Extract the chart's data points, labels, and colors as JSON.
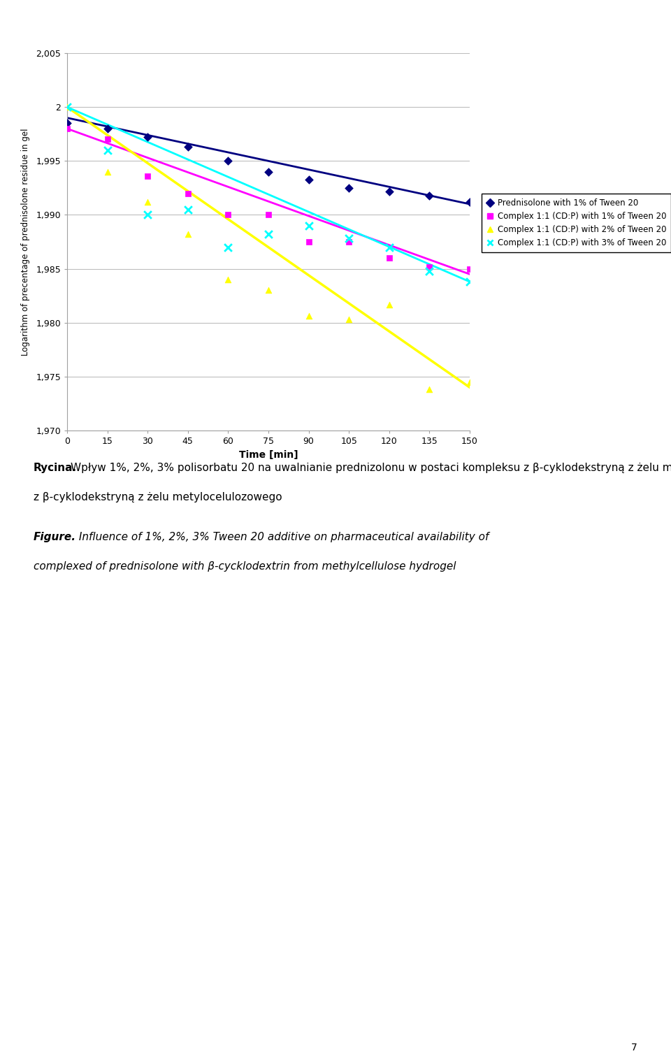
{
  "xlabel": "Time [min]",
  "ylabel": "Logarithm of precentage of prednisolone residue in gel",
  "xlim": [
    0,
    150
  ],
  "ylim": [
    1.97,
    2.005
  ],
  "yticks": [
    1.97,
    1.975,
    1.98,
    1.985,
    1.99,
    1.995,
    2.0,
    2.005
  ],
  "xticks": [
    0,
    15,
    30,
    45,
    60,
    75,
    90,
    105,
    120,
    135,
    150
  ],
  "series1_label": "Prednisolone with 1% of Tween 20",
  "series1_color": "#000080",
  "series1_x": [
    0,
    15,
    30,
    45,
    60,
    75,
    90,
    105,
    120,
    135,
    150
  ],
  "series1_y": [
    1.9985,
    1.998,
    1.9972,
    1.9963,
    1.995,
    1.994,
    1.9933,
    1.9925,
    1.9922,
    1.9918,
    1.9912
  ],
  "series1_line_x": [
    0,
    150
  ],
  "series1_line_y": [
    1.999,
    1.991
  ],
  "series2_label": "Complex 1:1 (CD:P) with 1% of Tween 20",
  "series2_color": "#FF00FF",
  "series2_x": [
    0,
    15,
    30,
    45,
    60,
    75,
    90,
    105,
    120,
    135,
    150
  ],
  "series2_y": [
    1.998,
    1.997,
    1.9936,
    1.992,
    1.99,
    1.99,
    1.9875,
    1.9875,
    1.986,
    1.9852,
    1.985
  ],
  "series2_line_x": [
    0,
    150
  ],
  "series2_line_y": [
    1.998,
    1.9845
  ],
  "series3_label": "Complex 1:1 (CD:P) with 2% of Tween 20",
  "series3_color": "#FFFF00",
  "series3_x": [
    0,
    15,
    30,
    45,
    60,
    75,
    90,
    105,
    120,
    135,
    150
  ],
  "series3_y": [
    2.0,
    1.994,
    1.9912,
    1.9882,
    1.984,
    1.983,
    1.9806,
    1.9803,
    1.9817,
    1.9738,
    1.9745
  ],
  "series3_line_x": [
    0,
    150
  ],
  "series3_line_y": [
    2.0,
    1.974
  ],
  "series4_label": "Complex 1:1 (CD:P) with 3% of Tween 20",
  "series4_color": "#00FFFF",
  "series4_x": [
    0,
    15,
    30,
    45,
    60,
    75,
    90,
    105,
    120,
    135,
    150
  ],
  "series4_y": [
    2.0,
    1.996,
    1.99,
    1.9905,
    1.987,
    1.9882,
    1.989,
    1.9878,
    1.987,
    1.9848,
    1.9838
  ],
  "series4_line_x": [
    0,
    150
  ],
  "series4_line_y": [
    2.0,
    1.9838
  ],
  "caption_pl_bold": "Rycina.",
  "caption_pl_rest": " Wpływ 1%, 2%, 3% polisorbatu 20 na uwalnianie prednizolonu w postaci kompleksu z β-cyklodekstryną z żelu metylocelulozowego",
  "caption_en_bold": "Figure.",
  "caption_en_rest": " Influence of 1%, 2%, 3% Tween 20 additive on pharmaceutical availability of complexed of prednisolone with β-cycklodextrin from methylcellulose hydrogel",
  "background_color": "#FFFFFF",
  "grid_color": "#BEBEBE",
  "page_number": "7"
}
